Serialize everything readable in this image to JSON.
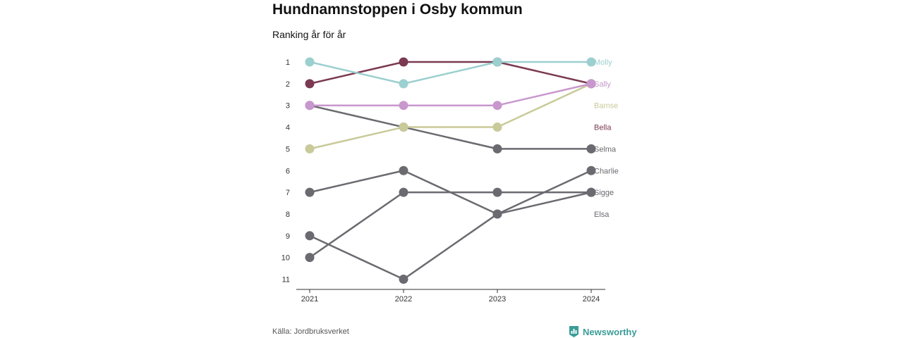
{
  "title": "Hundnamnstoppen i Osby kommun",
  "subtitle": "Ranking år för år",
  "source": "Källa: Jordbruksverket",
  "brand": "Newsworthy",
  "chart_data": {
    "type": "line",
    "title": "Hundnamnstoppen i Osby kommun",
    "subtitle": "Ranking år för år",
    "x": [
      "2021",
      "2022",
      "2023",
      "2024"
    ],
    "y_ticks": [
      1,
      2,
      3,
      4,
      5,
      6,
      7,
      8,
      9,
      10,
      11
    ],
    "ylim": [
      1,
      11
    ],
    "y_reversed": true,
    "grid": false,
    "legend": "labels at right end of lines",
    "series": [
      {
        "name": "Molly",
        "values": [
          1,
          2,
          1,
          1
        ],
        "color": "#9ccfcf"
      },
      {
        "name": "Sally",
        "values": [
          3,
          3,
          3,
          2
        ],
        "color": "#c897cd"
      },
      {
        "name": "Bamse",
        "values": [
          5,
          4,
          4,
          2
        ],
        "color": "#c9ca99"
      },
      {
        "name": "Bella",
        "values": [
          2,
          1,
          1,
          2
        ],
        "color": "#7b3a52"
      },
      {
        "name": "Selma",
        "values": [
          3,
          4,
          5,
          5
        ],
        "color": "#6a6a70"
      },
      {
        "name": "Charlie",
        "values": [
          7,
          6,
          8,
          6
        ],
        "color": "#6a6a70"
      },
      {
        "name": "Sigge",
        "values": [
          9,
          11,
          8,
          7
        ],
        "color": "#6a6a70"
      },
      {
        "name": "Elsa",
        "values": [
          10,
          7,
          7,
          7
        ],
        "color": "#6a6a70"
      }
    ]
  }
}
